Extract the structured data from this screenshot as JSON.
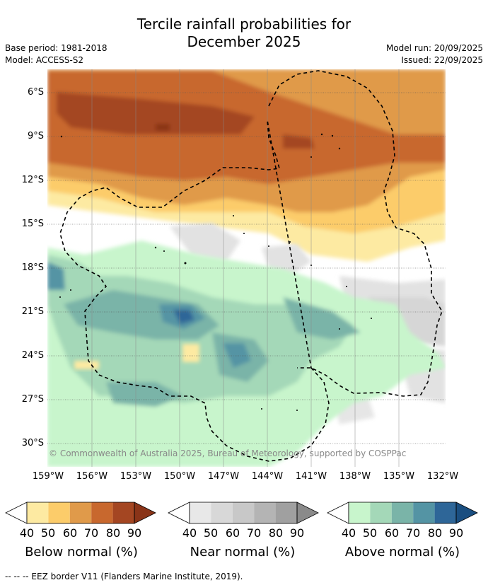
{
  "title": {
    "line1": "Tercile rainfall probabilities for",
    "line2": "December 2025"
  },
  "meta": {
    "base_period": "Base period: 1981-2018",
    "model": "Model: ACCESS-S2",
    "model_run": "Model run: 20/09/2025",
    "issued": "Issued: 22/09/2025"
  },
  "axes": {
    "lat_labels": [
      "6°S",
      "9°S",
      "12°S",
      "15°S",
      "18°S",
      "21°S",
      "24°S",
      "27°S",
      "30°S"
    ],
    "lon_labels": [
      "159°W",
      "156°W",
      "153°W",
      "150°W",
      "147°W",
      "144°W",
      "141°W",
      "138°W",
      "135°W",
      "132°W"
    ]
  },
  "copyright": "© Commonwealth of Australia 2025, Bureau of Meteorology, supported by COSPPac",
  "legends": [
    {
      "title": "Below normal (%)",
      "ticks": [
        "40",
        "50",
        "60",
        "70",
        "80",
        "90"
      ],
      "colors": [
        "#fdeaa2",
        "#fccc6a",
        "#e09a4a",
        "#c8682e",
        "#a44622",
        "#8a3418"
      ]
    },
    {
      "title": "Near normal (%)",
      "ticks": [
        "40",
        "50",
        "60",
        "70",
        "80",
        "90"
      ],
      "colors": [
        "#e8e8e8",
        "#d8d8d8",
        "#c8c8c8",
        "#b4b4b4",
        "#a0a0a0",
        "#8a8a8a"
      ]
    },
    {
      "title": "Above normal (%)",
      "ticks": [
        "40",
        "50",
        "60",
        "70",
        "80",
        "90"
      ],
      "colors": [
        "#c8f5cc",
        "#a4d8b8",
        "#7ab4a8",
        "#5494a4",
        "#2e6698",
        "#1a4e80"
      ]
    }
  ],
  "footer": "-- -- -- EEZ border V11 (Flanders Marine Institute, 2019)."
}
